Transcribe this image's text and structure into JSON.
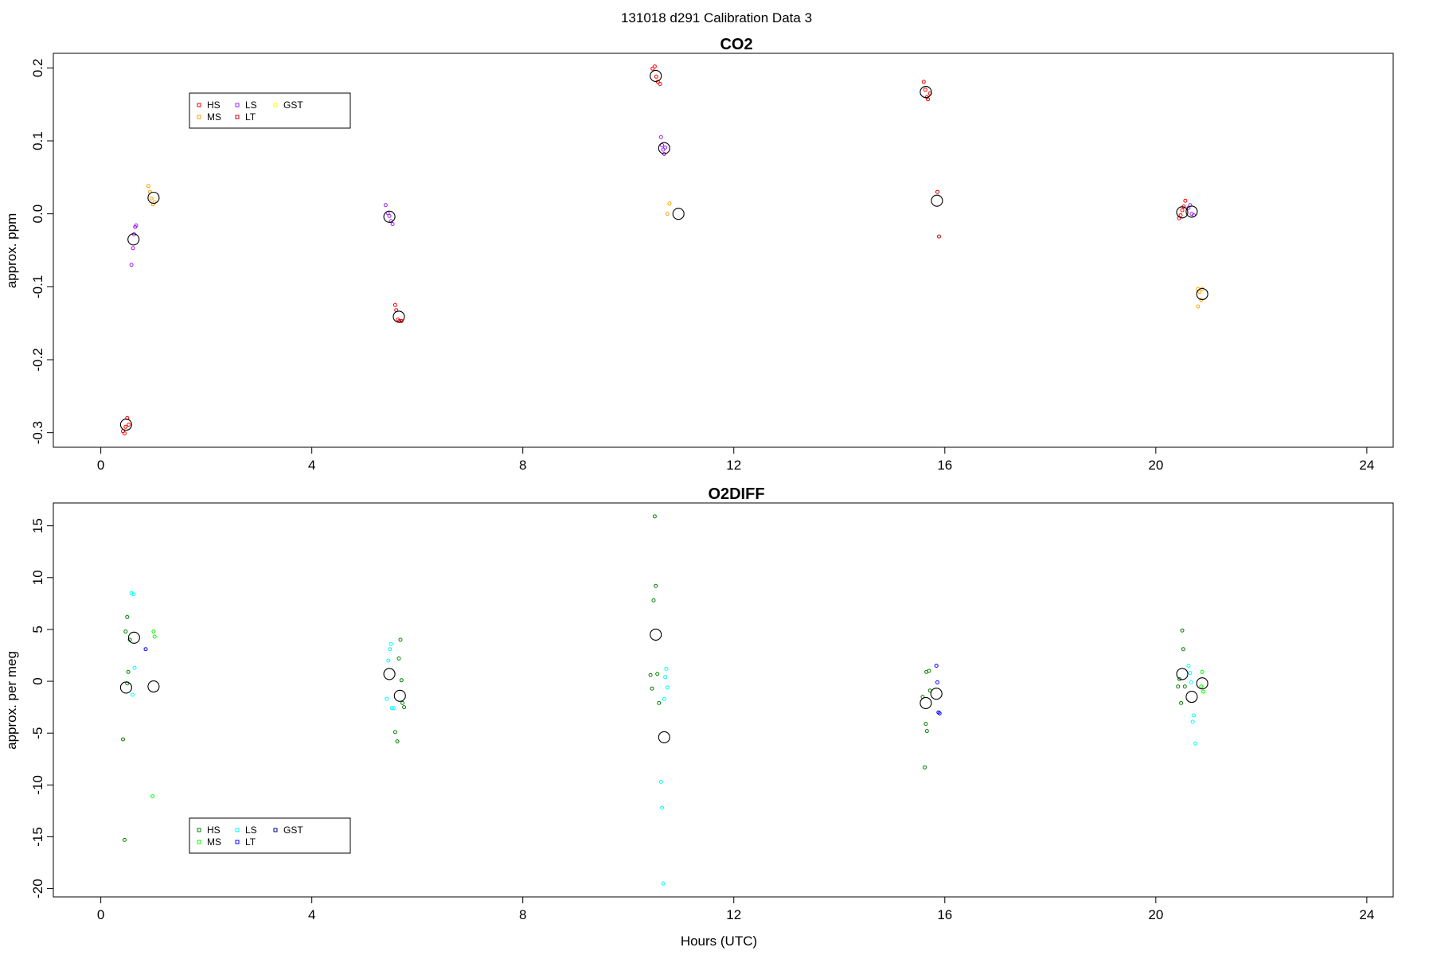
{
  "figure": {
    "title": "131018   d291   Calibration Data 3",
    "xlabel": "Hours (UTC)"
  },
  "chart_data": [
    {
      "type": "scatter",
      "title": "CO2",
      "ylabel": "approx. ppm",
      "xlabel": "Hours (UTC)",
      "xlim": [
        -0.9,
        24.5
      ],
      "ylim": [
        -0.32,
        0.22
      ],
      "xticks": [
        0,
        4,
        8,
        12,
        16,
        20,
        24
      ],
      "yticks": [
        -0.3,
        -0.2,
        -0.1,
        0.0,
        0.1,
        0.2
      ],
      "ytick_labels": [
        "-0.3",
        "-0.2",
        "-0.1",
        "0.0",
        "0.1",
        "0.2"
      ],
      "grid": false,
      "legend": {
        "placement": "top-left",
        "entries": [
          {
            "label": "HS",
            "color": "#ff0000"
          },
          {
            "label": "MS",
            "color": "#ffa500"
          },
          {
            "label": "LS",
            "color": "#a020f0"
          },
          {
            "label": "LT",
            "color": "#cd0000"
          },
          {
            "label": "GST",
            "color": "#ffff00"
          }
        ]
      },
      "series": [
        {
          "name": "HS",
          "color": "#ff0000",
          "points": [
            [
              0.42,
              -0.298
            ],
            [
              0.45,
              -0.301
            ],
            [
              0.47,
              -0.292
            ],
            [
              0.5,
              -0.28
            ],
            [
              0.53,
              -0.289
            ],
            [
              5.58,
              -0.125
            ],
            [
              5.6,
              -0.132
            ],
            [
              5.63,
              -0.145
            ],
            [
              5.66,
              -0.147
            ],
            [
              5.7,
              -0.147
            ],
            [
              10.46,
              0.199
            ],
            [
              10.5,
              0.202
            ],
            [
              10.53,
              0.188
            ],
            [
              10.56,
              0.181
            ],
            [
              10.6,
              0.178
            ],
            [
              15.6,
              0.181
            ],
            [
              15.63,
              0.17
            ],
            [
              15.66,
              0.16
            ],
            [
              15.68,
              0.157
            ],
            [
              15.72,
              0.165
            ],
            [
              20.44,
              -0.006
            ],
            [
              20.47,
              -0.002
            ],
            [
              20.5,
              0.005
            ],
            [
              20.53,
              0.01
            ],
            [
              20.56,
              0.018
            ]
          ]
        },
        {
          "name": "MS",
          "color": "#ffa500",
          "points": [
            [
              0.9,
              0.038
            ],
            [
              0.93,
              0.03
            ],
            [
              0.96,
              0.021
            ],
            [
              0.99,
              0.013
            ],
            [
              1.02,
              0.016
            ],
            [
              10.74,
              0.0
            ],
            [
              10.78,
              0.014
            ],
            [
              20.8,
              -0.103
            ],
            [
              20.83,
              -0.107
            ],
            [
              20.86,
              -0.118
            ],
            [
              20.8,
              -0.127
            ],
            [
              20.88,
              -0.103
            ]
          ]
        },
        {
          "name": "LS",
          "color": "#a020f0",
          "points": [
            [
              0.58,
              -0.07
            ],
            [
              0.61,
              -0.047
            ],
            [
              0.63,
              -0.028
            ],
            [
              0.65,
              -0.018
            ],
            [
              0.67,
              -0.016
            ],
            [
              5.4,
              0.012
            ],
            [
              5.44,
              0.001
            ],
            [
              5.47,
              -0.003
            ],
            [
              5.5,
              -0.01
            ],
            [
              5.53,
              -0.014
            ],
            [
              10.62,
              0.105
            ],
            [
              10.64,
              0.094
            ],
            [
              10.66,
              0.088
            ],
            [
              10.68,
              0.082
            ],
            [
              10.7,
              0.091
            ],
            [
              20.62,
              0.008
            ],
            [
              20.65,
              0.012
            ],
            [
              20.68,
              0.0
            ],
            [
              20.72,
              -0.002
            ]
          ]
        },
        {
          "name": "LT",
          "color": "#cd0000",
          "points": [
            [
              15.86,
              0.03
            ],
            [
              15.89,
              -0.031
            ]
          ]
        },
        {
          "name": "mean",
          "color": "#000000",
          "big": true,
          "points": [
            [
              0.48,
              -0.289
            ],
            [
              0.62,
              -0.035
            ],
            [
              1.0,
              0.022
            ],
            [
              5.47,
              -0.004
            ],
            [
              5.65,
              -0.141
            ],
            [
              10.52,
              0.189
            ],
            [
              10.68,
              0.09
            ],
            [
              10.95,
              0.0
            ],
            [
              15.64,
              0.167
            ],
            [
              15.85,
              0.018
            ],
            [
              20.5,
              0.002
            ],
            [
              20.68,
              0.003
            ],
            [
              20.88,
              -0.11
            ]
          ]
        }
      ]
    },
    {
      "type": "scatter",
      "title": "O2DIFF",
      "ylabel": "approx. per meg",
      "xlabel": "Hours (UTC)",
      "xlim": [
        -0.9,
        24.5
      ],
      "ylim": [
        -20.8,
        17.2
      ],
      "xticks": [
        0,
        4,
        8,
        12,
        16,
        20,
        24
      ],
      "yticks": [
        -20,
        -15,
        -10,
        -5,
        0,
        5,
        10,
        15
      ],
      "ytick_labels": [
        "-20",
        "-15",
        "-10",
        "-5",
        "0",
        "5",
        "10",
        "15"
      ],
      "grid": false,
      "legend": {
        "placement": "bottom-left",
        "entries": [
          {
            "label": "HS",
            "color": "#008000"
          },
          {
            "label": "MS",
            "color": "#00ff00"
          },
          {
            "label": "LS",
            "color": "#00ffff"
          },
          {
            "label": "LT",
            "color": "#0000ff"
          },
          {
            "label": "GST",
            "color": "#00008b"
          }
        ]
      },
      "series": [
        {
          "name": "HS",
          "color": "#008000",
          "points": [
            [
              0.42,
              -5.6
            ],
            [
              0.45,
              -15.3
            ],
            [
              0.47,
              4.8
            ],
            [
              0.5,
              6.2
            ],
            [
              0.52,
              0.9
            ],
            [
              0.55,
              4.0
            ],
            [
              0.5,
              -0.2
            ],
            [
              5.58,
              -4.9
            ],
            [
              5.62,
              -5.8
            ],
            [
              5.65,
              2.2
            ],
            [
              5.68,
              4.0
            ],
            [
              5.7,
              0.1
            ],
            [
              5.72,
              -2.1
            ],
            [
              5.75,
              -2.5
            ],
            [
              10.42,
              0.6
            ],
            [
              10.45,
              -0.7
            ],
            [
              10.48,
              7.8
            ],
            [
              10.52,
              9.2
            ],
            [
              10.5,
              15.9
            ],
            [
              10.55,
              0.7
            ],
            [
              10.58,
              -2.1
            ],
            [
              15.58,
              -1.5
            ],
            [
              15.62,
              -8.3
            ],
            [
              15.64,
              -4.1
            ],
            [
              15.66,
              -4.8
            ],
            [
              15.7,
              1.0
            ],
            [
              15.72,
              -0.9
            ],
            [
              15.65,
              0.9
            ],
            [
              20.42,
              -0.5
            ],
            [
              20.45,
              0.2
            ],
            [
              20.5,
              4.9
            ],
            [
              20.52,
              3.1
            ],
            [
              20.55,
              -0.5
            ],
            [
              20.48,
              -2.1
            ]
          ]
        },
        {
          "name": "MS",
          "color": "#00ff00",
          "points": [
            [
              0.98,
              -11.1
            ],
            [
              1.0,
              4.8
            ],
            [
              1.02,
              4.3
            ],
            [
              20.86,
              -0.5
            ],
            [
              20.88,
              0.9
            ],
            [
              20.9,
              -1.0
            ]
          ]
        },
        {
          "name": "LS",
          "color": "#00ffff",
          "points": [
            [
              0.58,
              8.5
            ],
            [
              0.62,
              8.4
            ],
            [
              0.64,
              1.3
            ],
            [
              0.6,
              -1.3
            ],
            [
              5.42,
              -1.7
            ],
            [
              5.45,
              2.0
            ],
            [
              5.48,
              3.1
            ],
            [
              5.5,
              3.6
            ],
            [
              5.52,
              -2.6
            ],
            [
              5.55,
              -2.6
            ],
            [
              10.62,
              -9.7
            ],
            [
              10.64,
              -12.2
            ],
            [
              10.66,
              -19.5
            ],
            [
              10.68,
              -1.7
            ],
            [
              10.7,
              0.4
            ],
            [
              10.72,
              1.2
            ],
            [
              10.74,
              -0.6
            ],
            [
              20.62,
              1.5
            ],
            [
              20.65,
              0.8
            ],
            [
              20.67,
              -0.1
            ],
            [
              20.7,
              -3.9
            ],
            [
              20.72,
              -3.3
            ],
            [
              20.75,
              -6.0
            ]
          ]
        },
        {
          "name": "LT",
          "color": "#0000ff",
          "points": [
            [
              0.85,
              3.1
            ],
            [
              15.84,
              1.5
            ],
            [
              15.86,
              -0.1
            ],
            [
              15.88,
              -3.0
            ],
            [
              15.9,
              -3.1
            ]
          ]
        },
        {
          "name": "mean",
          "color": "#000000",
          "big": true,
          "points": [
            [
              0.48,
              -0.6
            ],
            [
              0.63,
              4.2
            ],
            [
              1.0,
              -0.5
            ],
            [
              5.47,
              0.7
            ],
            [
              5.67,
              -1.4
            ],
            [
              10.52,
              4.5
            ],
            [
              10.68,
              -5.4
            ],
            [
              15.64,
              -2.1
            ],
            [
              15.84,
              -1.2
            ],
            [
              20.5,
              0.7
            ],
            [
              20.68,
              -1.5
            ],
            [
              20.88,
              -0.2
            ]
          ]
        }
      ]
    }
  ]
}
